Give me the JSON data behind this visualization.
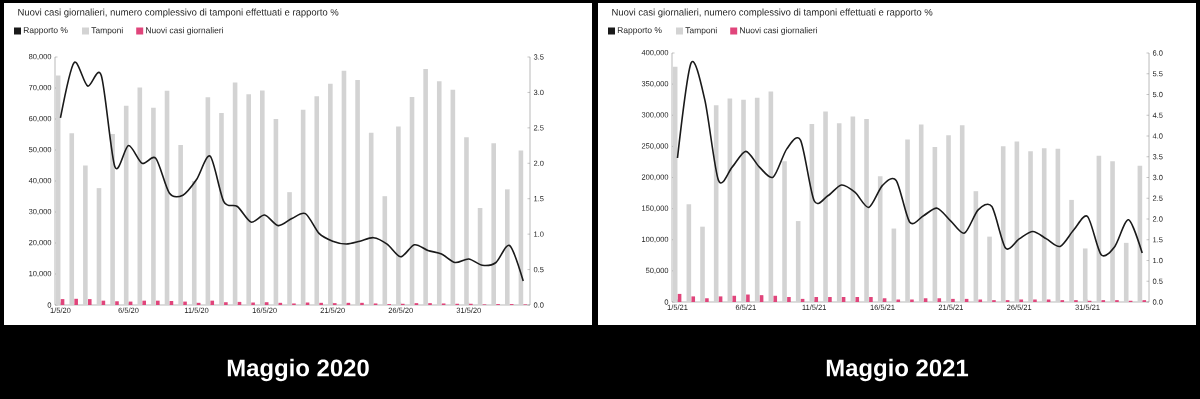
{
  "chart_data": [
    {
      "type": "bar",
      "title": "Nuovi casi giornalieri, numero complessivo di tamponi effettuati e rapporto %",
      "categories": [
        "1/5/20",
        null,
        null,
        null,
        null,
        "6/5/20",
        null,
        null,
        null,
        null,
        "11/5/20",
        null,
        null,
        null,
        null,
        "16/5/20",
        null,
        null,
        null,
        null,
        "21/5/20",
        null,
        null,
        null,
        null,
        "26/5/20",
        null,
        null,
        null,
        null,
        "31/5/20",
        null,
        null,
        null,
        null
      ],
      "series": [
        {
          "name": "Rapporto %",
          "type": "line",
          "axis": "y2",
          "color": "#1a1a1a",
          "values": [
            2.64,
            3.42,
            3.09,
            3.24,
            1.95,
            2.25,
            2.0,
            2.07,
            1.58,
            1.55,
            1.77,
            2.1,
            1.46,
            1.39,
            1.17,
            1.27,
            1.12,
            1.22,
            1.29,
            1.01,
            0.9,
            0.86,
            0.9,
            0.95,
            0.86,
            0.68,
            0.85,
            0.77,
            0.72,
            0.6,
            0.65,
            0.56,
            0.6,
            0.84,
            0.34
          ]
        },
        {
          "name": "Tamponi",
          "color": "#d3d3d3",
          "values": [
            74000,
            55400,
            45000,
            37700,
            55200,
            64300,
            70200,
            63600,
            69100,
            51600,
            40000,
            67000,
            61900,
            71800,
            68000,
            69200,
            60000,
            36400,
            63000,
            67300,
            71400,
            75600,
            72600,
            55600,
            35100,
            57600,
            67100,
            76100,
            72200,
            69400,
            54100,
            31300,
            52200,
            37300,
            49800
          ]
        },
        {
          "name": "Nuovi casi giornalieri",
          "color": "#e0457b",
          "values": [
            1900,
            2000,
            1900,
            1400,
            1200,
            1100,
            1400,
            1400,
            1300,
            1100,
            700,
            1400,
            900,
            1000,
            800,
            900,
            700,
            500,
            800,
            700,
            600,
            700,
            700,
            500,
            300,
            400,
            600,
            600,
            500,
            400,
            400,
            200,
            300,
            300,
            200
          ]
        }
      ],
      "ylim": [
        0,
        80000
      ],
      "yticks": [
        0,
        {
          "value": 10000,
          "label": "10,000"
        },
        {
          "value": 20000,
          "label": "20,000"
        },
        {
          "value": 30000,
          "label": "30,000"
        },
        {
          "value": 40000,
          "label": "40,000"
        },
        {
          "value": 50000,
          "label": "50,000"
        },
        {
          "value": 60000,
          "label": "60,000"
        },
        {
          "value": 70000,
          "label": "70,000"
        },
        {
          "value": 80000,
          "label": "80,000"
        }
      ],
      "y2lim": [
        0,
        3.5
      ],
      "y2ticks": [
        {
          "value": 0,
          "label": "0.0"
        },
        0.5,
        {
          "value": 1,
          "label": "1.0"
        },
        1.5,
        {
          "value": 2,
          "label": "2.0"
        },
        2.5,
        {
          "value": 3,
          "label": "3.0"
        },
        3.5
      ],
      "legend": "top left",
      "annotations": [
        "Maggio 2020"
      ]
    },
    {
      "type": "bar",
      "title": "Nuovi casi giornalieri, numero complessivo di tamponi effettuati e rapporto %",
      "categories": [
        "1/5/21",
        null,
        null,
        null,
        null,
        "6/5/21",
        null,
        null,
        null,
        null,
        "11/5/21",
        null,
        null,
        null,
        null,
        "16/5/21",
        null,
        null,
        null,
        null,
        "21/5/21",
        null,
        null,
        null,
        null,
        "26/5/21",
        null,
        null,
        null,
        null,
        "31/5/21",
        null,
        null,
        null,
        null
      ],
      "series": [
        {
          "name": "Rapporto %",
          "type": "line",
          "axis": "y2",
          "color": "#1a1a1a",
          "values": [
            3.47,
            5.76,
            4.87,
            2.93,
            3.25,
            3.63,
            3.25,
            3.01,
            3.69,
            3.9,
            2.44,
            2.56,
            2.82,
            2.64,
            2.28,
            2.81,
            2.93,
            1.92,
            2.08,
            2.26,
            1.95,
            1.66,
            2.22,
            2.3,
            1.3,
            1.52,
            1.7,
            1.52,
            1.34,
            1.74,
            2.06,
            1.14,
            1.34,
            1.98,
            1.18
          ]
        },
        {
          "name": "Tamponi",
          "color": "#d3d3d3",
          "values": [
            378000,
            157000,
            121000,
            316000,
            327000,
            325000,
            328000,
            338000,
            226000,
            130000,
            286000,
            306000,
            287000,
            298000,
            294000,
            202000,
            118000,
            261000,
            285000,
            249000,
            268000,
            284000,
            178000,
            105000,
            250000,
            258000,
            242000,
            247000,
            246000,
            164000,
            86000,
            235000,
            226000,
            95000,
            219000
          ]
        },
        {
          "name": "Nuovi casi giornalieri",
          "color": "#e0457b",
          "values": [
            13000,
            9000,
            6000,
            9000,
            10000,
            12000,
            11000,
            10000,
            8000,
            5000,
            8000,
            8000,
            8000,
            8000,
            8000,
            6000,
            4000,
            4000,
            6000,
            6000,
            5000,
            5000,
            4000,
            3000,
            3000,
            4000,
            4000,
            4000,
            3000,
            3000,
            2000,
            3000,
            3000,
            2000,
            3000
          ]
        }
      ],
      "ylim": [
        0,
        400000
      ],
      "yticks": [
        0,
        {
          "value": 50000,
          "label": "50,000"
        },
        {
          "value": 100000,
          "label": "100,000"
        },
        {
          "value": 150000,
          "label": "150,000"
        },
        {
          "value": 200000,
          "label": "200,000"
        },
        {
          "value": 250000,
          "label": "250,000"
        },
        {
          "value": 300000,
          "label": "300,000"
        },
        {
          "value": 350000,
          "label": "350,000"
        },
        {
          "value": 400000,
          "label": "400,000"
        }
      ],
      "y2lim": [
        0,
        6.0
      ],
      "y2ticks": [
        {
          "value": 0,
          "label": "0.0"
        },
        0.5,
        {
          "value": 1,
          "label": "1.0"
        },
        1.5,
        {
          "value": 2,
          "label": "2.0"
        },
        2.5,
        {
          "value": 3,
          "label": "3.0"
        },
        3.5,
        {
          "value": 4,
          "label": "4.0"
        },
        4.5,
        {
          "value": 5,
          "label": "5.0"
        },
        5.5,
        {
          "value": 6,
          "label": "6.0"
        }
      ],
      "legend": "top left",
      "annotations": [
        "Maggio 2021"
      ]
    }
  ]
}
